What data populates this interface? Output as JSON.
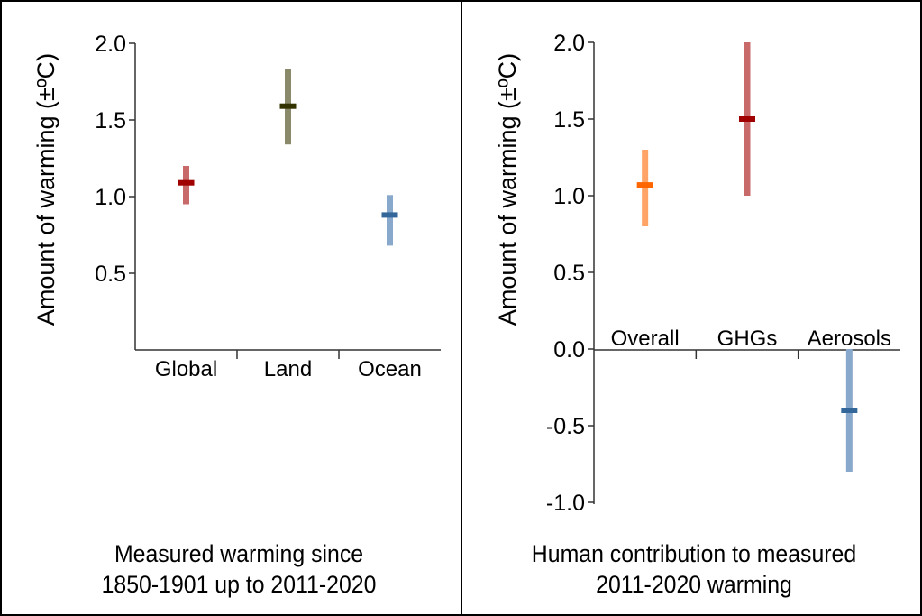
{
  "chart_data": [
    {
      "type": "errorbar",
      "title": "Measured warming since 1850-1901 up to 2011-2020",
      "title_lines": [
        "Measured warming since",
        "1850-1901 up to 2011-2020"
      ],
      "ylabel": "Amount of warming (±ºC)",
      "xlabel": "",
      "ylim": [
        0.0,
        2.0
      ],
      "yticks": [
        0.5,
        1.0,
        1.5,
        2.0
      ],
      "ytick_labels": [
        "0.5",
        "1.0",
        "1.5",
        "2.0"
      ],
      "grid": false,
      "categories": [
        "Global",
        "Land",
        "Ocean"
      ],
      "values": [
        1.09,
        1.59,
        0.88
      ],
      "lower": [
        0.95,
        1.34,
        0.68
      ],
      "upper": [
        1.2,
        1.83,
        1.01
      ],
      "colors": {
        "range": [
          "#c86a6a",
          "#8a8a6a",
          "#88a8cc"
        ],
        "center": [
          "#a00000",
          "#333300",
          "#336699"
        ]
      }
    },
    {
      "type": "errorbar",
      "title": "Human contribution to measured 2011-2020 warming",
      "title_lines": [
        "Human contribution to measured",
        "2011-2020 warming"
      ],
      "ylabel": "Amount of warming (±ºC)",
      "xlabel": "",
      "ylim": [
        -1.0,
        2.0
      ],
      "yticks": [
        -1.0,
        -0.5,
        0.0,
        0.5,
        1.0,
        1.5,
        2.0
      ],
      "ytick_labels": [
        "-1.0",
        "-0.5",
        "0.0",
        "0.5",
        "1.0",
        "1.5",
        "2.0"
      ],
      "grid": false,
      "categories": [
        "Overall",
        "GHGs",
        "Aerosols"
      ],
      "values": [
        1.07,
        1.5,
        -0.4
      ],
      "lower": [
        0.8,
        1.0,
        -0.8
      ],
      "upper": [
        1.3,
        2.0,
        0.0
      ],
      "colors": {
        "range": [
          "#ffa466",
          "#c86a6a",
          "#88a8cc"
        ],
        "center": [
          "#ff6600",
          "#a00000",
          "#336699"
        ]
      }
    }
  ]
}
